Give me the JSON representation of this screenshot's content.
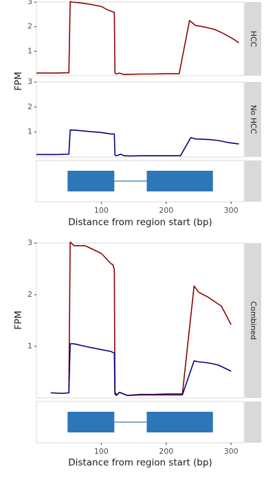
{
  "chart_data": [
    {
      "type": "line",
      "title": "",
      "xlabel": "Distance from region start (bp)",
      "ylabel": "FPM",
      "xlim": [
        0,
        320
      ],
      "xticks": [
        "100",
        "200",
        "300"
      ],
      "yticks": [
        "1",
        "2",
        "3"
      ],
      "grid": false,
      "facets": [
        {
          "strip": "HCC",
          "ylim": [
            0,
            3
          ],
          "series": [
            {
              "color": "#8b0000",
              "x": [
                0,
                30,
                50,
                52,
                55,
                70,
                85,
                100,
                110,
                120,
                121,
                123,
                128,
                135,
                145,
                160,
                180,
                200,
                220,
                236,
                245,
                260,
                275,
                285,
                295,
                305,
                312
              ],
              "y": [
                0.11,
                0.11,
                0.12,
                3.02,
                3.0,
                2.96,
                2.9,
                2.82,
                2.68,
                2.58,
                0.12,
                0.07,
                0.11,
                0.05,
                0.06,
                0.07,
                0.07,
                0.08,
                0.08,
                2.25,
                2.05,
                1.98,
                1.88,
                1.76,
                1.62,
                1.47,
                1.34
              ]
            }
          ]
        },
        {
          "strip": "No HCC",
          "ylim": [
            0,
            3
          ],
          "series": [
            {
              "color": "#00007f",
              "x": [
                0,
                30,
                50,
                52,
                60,
                80,
                100,
                115,
                120,
                121,
                123,
                130,
                135,
                145,
                160,
                180,
                200,
                222,
                238,
                245,
                265,
                280,
                295,
                312
              ],
              "y": [
                0.1,
                0.1,
                0.11,
                1.08,
                1.07,
                1.02,
                0.98,
                0.92,
                0.92,
                0.08,
                0.05,
                0.11,
                0.05,
                0.04,
                0.05,
                0.05,
                0.05,
                0.05,
                0.78,
                0.72,
                0.7,
                0.66,
                0.58,
                0.52
              ]
            }
          ]
        }
      ],
      "gene_model": {
        "exons": [
          [
            48,
            120
          ],
          [
            170,
            272
          ]
        ],
        "intron": [
          120,
          170
        ],
        "color": "#2b77b8"
      }
    },
    {
      "type": "line",
      "title": "",
      "xlabel": "Distance from region start (bp)",
      "ylabel": "FPM",
      "xlim": [
        0,
        320
      ],
      "xticks": [
        "100",
        "200",
        "300"
      ],
      "yticks": [
        "1",
        "2",
        "3"
      ],
      "grid": false,
      "facets": [
        {
          "strip": "Combined",
          "ylim": [
            0,
            3
          ],
          "series": [
            {
              "color": "#8b0000",
              "x": [
                50,
                52,
                58,
                75,
                100,
                115,
                118,
                120,
                121,
                123,
                128,
                140,
                160,
                180,
                200,
                225,
                243,
                250,
                265,
                280,
                285,
                300
              ],
              "y": [
                0.12,
                3.02,
                2.95,
                2.95,
                2.8,
                2.6,
                2.58,
                2.48,
                0.12,
                0.06,
                0.11,
                0.05,
                0.07,
                0.07,
                0.08,
                0.08,
                2.17,
                2.05,
                1.95,
                1.82,
                1.78,
                1.42
              ]
            },
            {
              "color": "#00007f",
              "x": [
                22,
                40,
                50,
                52,
                58,
                75,
                95,
                115,
                120,
                121,
                123,
                128,
                140,
                160,
                180,
                200,
                225,
                243,
                250,
                265,
                280,
                300
              ],
              "y": [
                0.1,
                0.09,
                0.1,
                1.05,
                1.05,
                1.0,
                0.95,
                0.9,
                0.87,
                0.08,
                0.05,
                0.11,
                0.05,
                0.06,
                0.06,
                0.06,
                0.06,
                0.72,
                0.7,
                0.68,
                0.64,
                0.52
              ]
            }
          ]
        }
      ],
      "gene_model": {
        "exons": [
          [
            48,
            120
          ],
          [
            170,
            272
          ]
        ],
        "intron": [
          120,
          170
        ],
        "color": "#2b77b8"
      }
    }
  ]
}
